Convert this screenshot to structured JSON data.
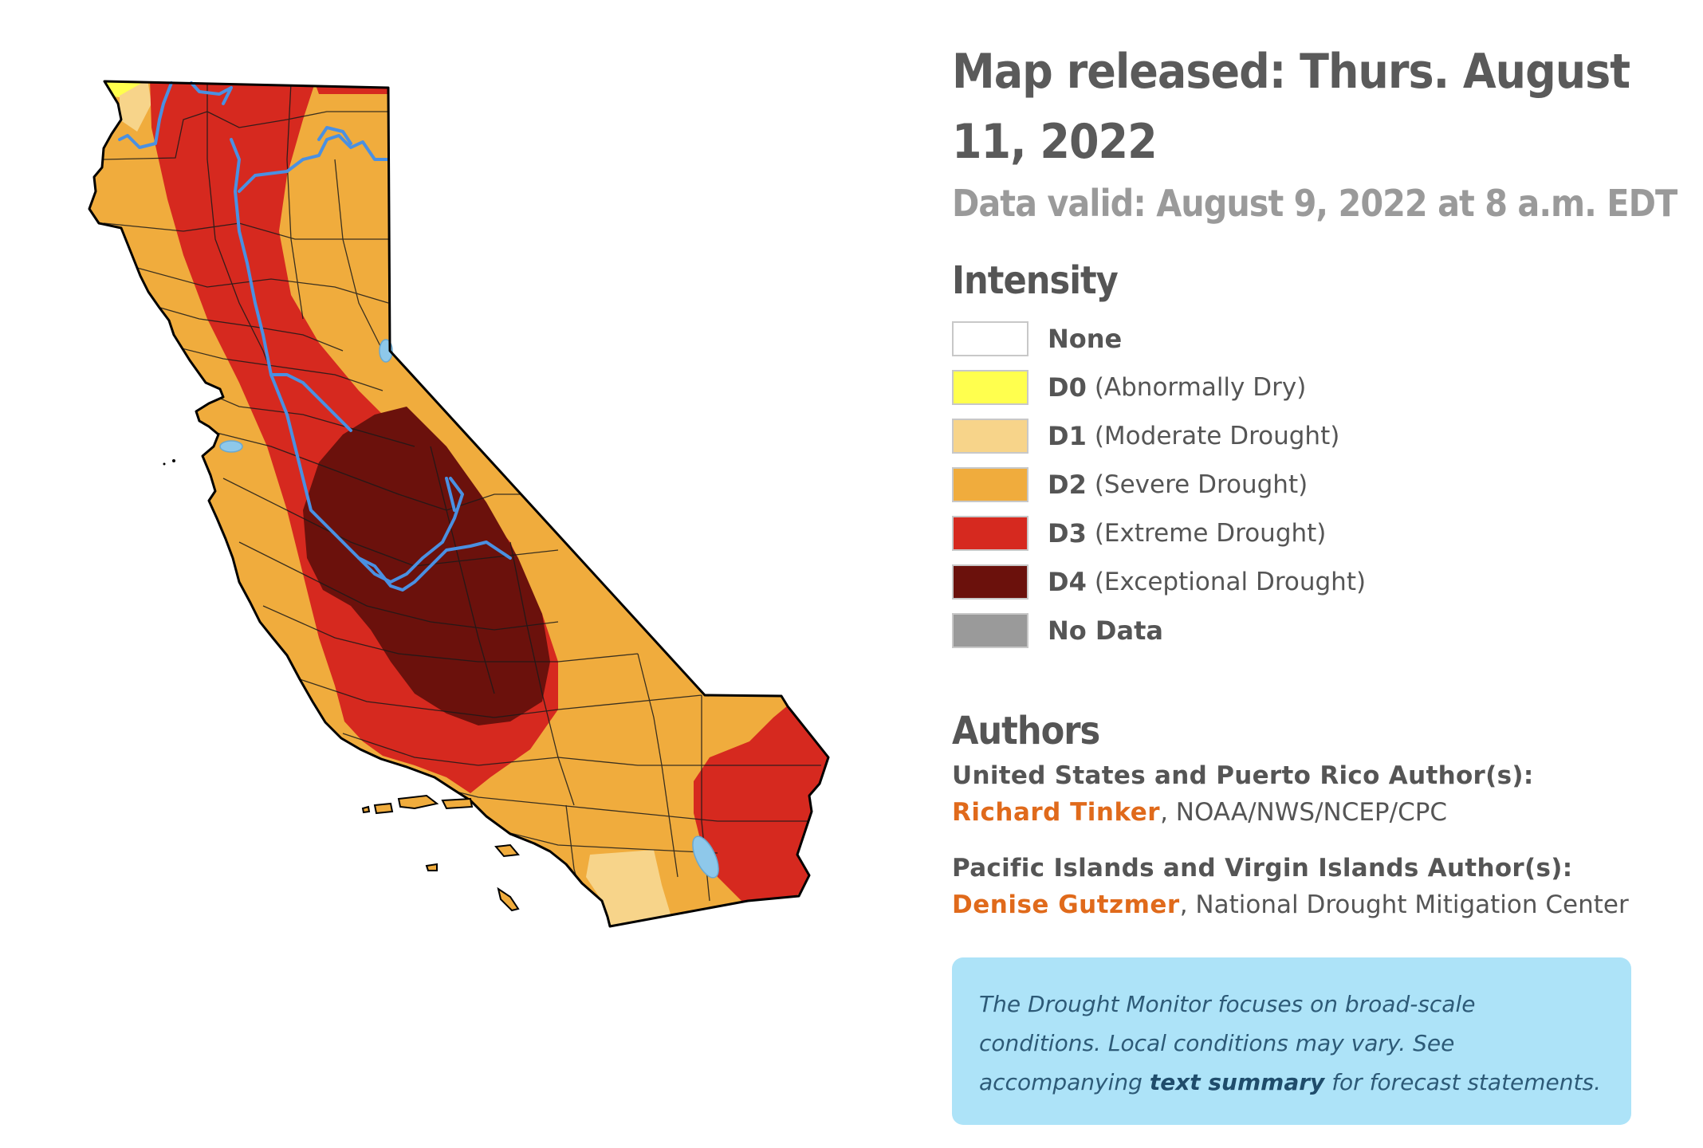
{
  "header": {
    "released": "Map released: Thurs. August 11, 2022",
    "valid": "Data valid: August 9, 2022 at 8 a.m. EDT"
  },
  "intensity": {
    "heading": "Intensity",
    "items": [
      {
        "code": "None",
        "desc": "",
        "color": "#ffffff"
      },
      {
        "code": "D0",
        "desc": "(Abnormally Dry)",
        "color": "#ffff4e"
      },
      {
        "code": "D1",
        "desc": "(Moderate Drought)",
        "color": "#f7d48a"
      },
      {
        "code": "D2",
        "desc": "(Severe Drought)",
        "color": "#f0ac3d"
      },
      {
        "code": "D3",
        "desc": "(Extreme Drought)",
        "color": "#d6291f"
      },
      {
        "code": "D4",
        "desc": "(Exceptional Drought)",
        "color": "#6b110c"
      },
      {
        "code": "No Data",
        "desc": "",
        "color": "#9a9a9a"
      }
    ]
  },
  "authors": {
    "heading": "Authors",
    "us_label": "United States and Puerto Rico Author(s):",
    "us_author": {
      "name": "Richard Tinker",
      "affiliation": ", NOAA/NWS/NCEP/CPC"
    },
    "pacific_label": "Pacific Islands and Virgin Islands Author(s):",
    "pacific_author": {
      "name": "Denise Gutzmer",
      "affiliation": ", National Drought Mitigation Center"
    }
  },
  "note": {
    "text_before": "The Drought Monitor focuses on broad-scale conditions. Local conditions may vary. See accompanying ",
    "link": "text summary",
    "text_after": " for forecast statements."
  },
  "map": {
    "state": "California",
    "colors": {
      "water": "#8ec8ea",
      "river": "#4a90e2",
      "outline": "#000000"
    }
  }
}
